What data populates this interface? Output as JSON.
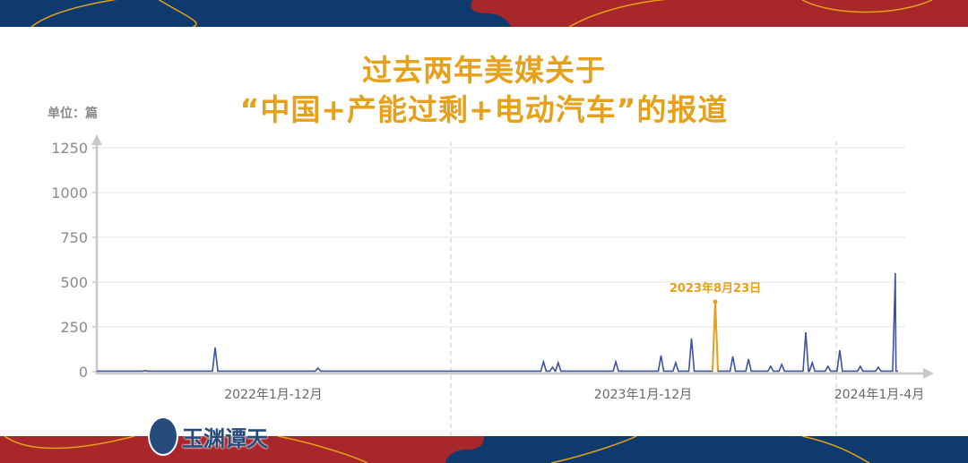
{
  "title_line1": "过去两年美媒关于",
  "title_line2": "“中国+产能过剩+电动汽车”的报道",
  "unit_label": "单位：篇",
  "logo_text": "玉渊谭天",
  "colors": {
    "blue": "#0e3a6e",
    "red": "#a8272a",
    "gold": "#e6a019",
    "line": "#3d52a3",
    "highlight": "#e6a019"
  },
  "chart_data": {
    "type": "line",
    "ylim": [
      0,
      1250
    ],
    "yticks": [
      0,
      250,
      500,
      750,
      1000,
      1250
    ],
    "grid": true,
    "x_range": [
      "2022-01-01",
      "2024-04-30"
    ],
    "x_sections": [
      {
        "label": "2022年1月-12月",
        "start": "2022-01-01",
        "end": "2022-12-31"
      },
      {
        "label": "2023年1月-12月",
        "start": "2023-01-01",
        "end": "2023-12-31"
      },
      {
        "label": "2024年1月-4月",
        "start": "2024-01-01",
        "end": "2024-04-30"
      }
    ],
    "baseline_value": 3,
    "spikes": [
      [
        "2022-02-20",
        6
      ],
      [
        "2022-05-03",
        135
      ],
      [
        "2022-08-17",
        20
      ],
      [
        "2023-03-24",
        55
      ],
      [
        "2023-04-01",
        25
      ],
      [
        "2023-04-06",
        50
      ],
      [
        "2023-05-27",
        55
      ],
      [
        "2023-07-06",
        90
      ],
      [
        "2023-07-19",
        50
      ],
      [
        "2023-08-02",
        185
      ],
      [
        "2023-08-23",
        390
      ],
      [
        "2023-09-11",
        85
      ],
      [
        "2023-09-28",
        70
      ],
      [
        "2023-10-22",
        30
      ],
      [
        "2023-11-03",
        40
      ],
      [
        "2023-11-29",
        220
      ],
      [
        "2023-12-06",
        50
      ],
      [
        "2023-12-23",
        30
      ],
      [
        "2024-01-08",
        120
      ],
      [
        "2024-02-18",
        30
      ],
      [
        "2024-03-25",
        25
      ],
      [
        "2024-04-24",
        125
      ],
      [
        "2024-04-28",
        550
      ]
    ],
    "highlight": {
      "date": "2023-08-23",
      "value": 390,
      "label": "2023年8月23日"
    }
  }
}
